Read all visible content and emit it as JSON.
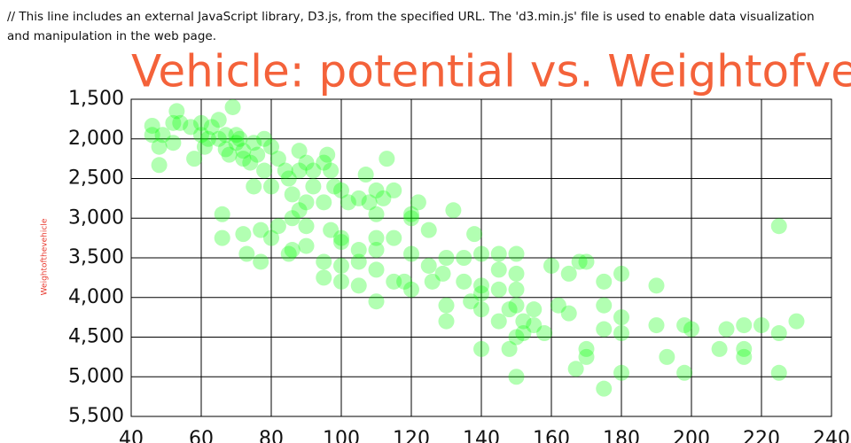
{
  "header_note": "// This line includes an external JavaScript library, D3.js, from the specified URL. The 'd3.min.js' file is used to enable data visualization and manipulation in the web page.",
  "chart_data": {
    "type": "scatter",
    "title": "Vehicle: potential vs. Weightofvehi",
    "y_label": "Weightofthevehicle",
    "color": "#00ff00",
    "opacity": 0.3,
    "grid": true,
    "y_reversed": true,
    "xlim": [
      40,
      240
    ],
    "xticks": [
      40,
      60,
      80,
      100,
      120,
      140,
      160,
      180,
      200,
      220,
      240
    ],
    "ylim": [
      1500,
      5500
    ],
    "yticks": [
      {
        "value": 1500,
        "label": "1,500"
      },
      {
        "value": 2000,
        "label": "2,000"
      },
      {
        "value": 2500,
        "label": "2,500"
      },
      {
        "value": 3000,
        "label": "3,000"
      },
      {
        "value": 3500,
        "label": "3,500"
      },
      {
        "value": 4000,
        "label": "4,000"
      },
      {
        "value": 4500,
        "label": "4,500"
      },
      {
        "value": 5000,
        "label": "5,000"
      },
      {
        "value": 5500,
        "label": "5,500"
      }
    ],
    "x": [
      46,
      46,
      48,
      49,
      52,
      52,
      53,
      54,
      58,
      60,
      60,
      61,
      62,
      63,
      65,
      65,
      67,
      67,
      68,
      69,
      70,
      70,
      71,
      72,
      72,
      74,
      75,
      75,
      76,
      78,
      78,
      80,
      80,
      82,
      84,
      85,
      86,
      86,
      88,
      88,
      88,
      90,
      90,
      90,
      92,
      92,
      95,
      95,
      96,
      97,
      98,
      100,
      100,
      100,
      102,
      105,
      105,
      107,
      108,
      110,
      110,
      110,
      110,
      110,
      112,
      113,
      115,
      115,
      120,
      120,
      120,
      122,
      125,
      125,
      129,
      130,
      130,
      132,
      135,
      137,
      138,
      140,
      140,
      140,
      140,
      145,
      145,
      145,
      148,
      150,
      150,
      150,
      150,
      150,
      150,
      152,
      155,
      158,
      160,
      165,
      165,
      167,
      170,
      170,
      170,
      175,
      175,
      175,
      175,
      180,
      180,
      180,
      180,
      190,
      190,
      193,
      198,
      198,
      200,
      208,
      210,
      215,
      215,
      215,
      220,
      225,
      225,
      225,
      230,
      48,
      57,
      66,
      66,
      72,
      73,
      77,
      77,
      80,
      82,
      85,
      86,
      90,
      95,
      95,
      97,
      100,
      100,
      105,
      105,
      110,
      115,
      118,
      120,
      126,
      130,
      135,
      140,
      145,
      148,
      152,
      155,
      162,
      168
    ],
    "values": [
      1835,
      1950,
      2330,
      1950,
      1800,
      2050,
      1650,
      1800,
      2250,
      1800,
      1950,
      2100,
      2000,
      1850,
      1760,
      2000,
      2130,
      1950,
      2200,
      1600,
      2050,
      1950,
      2000,
      2250,
      2150,
      2300,
      2050,
      2600,
      2200,
      2000,
      2400,
      2600,
      2100,
      2250,
      2400,
      2500,
      2700,
      3000,
      2150,
      2400,
      2900,
      2300,
      2800,
      3100,
      2600,
      2400,
      2300,
      2800,
      2200,
      2400,
      2600,
      2650,
      3250,
      3300,
      2800,
      3400,
      2750,
      2450,
      2800,
      2650,
      2950,
      3400,
      3650,
      4050,
      2750,
      2250,
      2650,
      3250,
      2950,
      3450,
      3900,
      2800,
      3600,
      3150,
      3700,
      3500,
      4100,
      2900,
      3800,
      4050,
      3200,
      3450,
      3950,
      4150,
      4650,
      3450,
      4300,
      3900,
      4650,
      3450,
      3700,
      3900,
      4100,
      4500,
      5000,
      4300,
      4350,
      4450,
      3600,
      3700,
      4200,
      4900,
      3550,
      4650,
      4750,
      3800,
      4400,
      5150,
      4100,
      3700,
      4450,
      4950,
      4250,
      3850,
      4350,
      4750,
      4950,
      4350,
      4400,
      4650,
      4400,
      4350,
      4650,
      4750,
      4350,
      3100,
      4450,
      4950,
      4300,
      2100,
      1850,
      3250,
      2950,
      3200,
      3450,
      3550,
      3150,
      3250,
      3100,
      3450,
      3400,
      3350,
      3550,
      3750,
      3150,
      3600,
      3800,
      3550,
      3850,
      3250,
      3800,
      3800,
      3000,
      3800,
      4300,
      3500,
      3850,
      3650,
      4150,
      4450,
      4150,
      4100,
      3550
    ]
  }
}
